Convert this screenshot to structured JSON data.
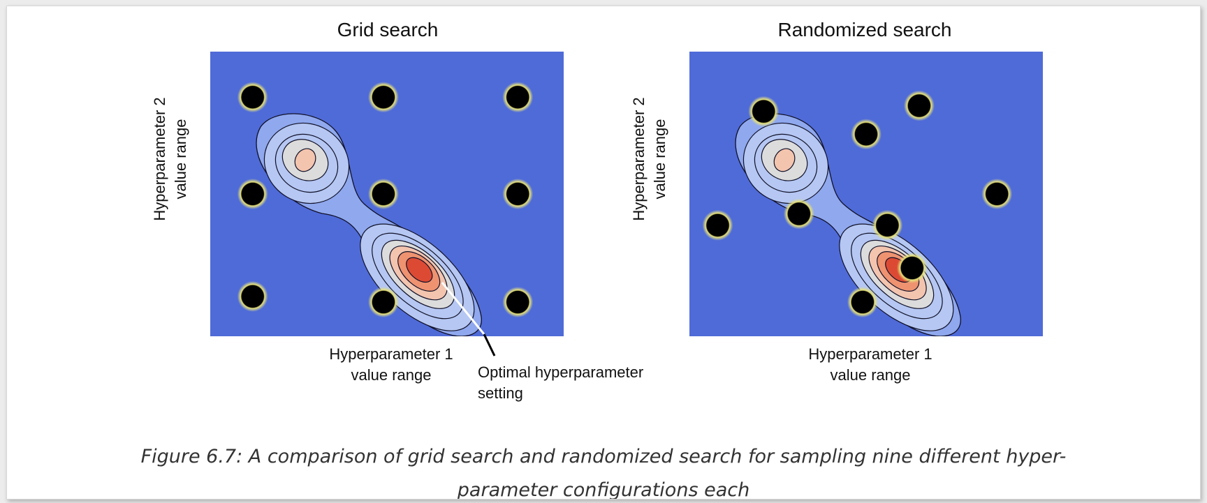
{
  "panels": {
    "grid": {
      "title": "Grid search",
      "xlabel_line1": "Hyperparameter 1",
      "xlabel_line2": "value range",
      "ylabel_line1": "Hyperparameter 2",
      "ylabel_line2": "value range",
      "samples": [
        [
          0.12,
          0.16
        ],
        [
          0.49,
          0.16
        ],
        [
          0.87,
          0.16
        ],
        [
          0.12,
          0.5
        ],
        [
          0.49,
          0.5
        ],
        [
          0.87,
          0.5
        ],
        [
          0.12,
          0.86
        ],
        [
          0.49,
          0.88
        ],
        [
          0.87,
          0.88
        ]
      ]
    },
    "random": {
      "title": "Randomized search",
      "xlabel_line1": "Hyperparameter 1",
      "xlabel_line2": "value range",
      "ylabel_line1": "Hyperparameter 2",
      "ylabel_line2": "value range",
      "samples": [
        [
          0.21,
          0.21
        ],
        [
          0.65,
          0.19
        ],
        [
          0.5,
          0.29
        ],
        [
          0.08,
          0.61
        ],
        [
          0.31,
          0.57
        ],
        [
          0.56,
          0.61
        ],
        [
          0.87,
          0.5
        ],
        [
          0.63,
          0.76
        ],
        [
          0.49,
          0.88
        ]
      ]
    }
  },
  "annotation": {
    "line1": "Optimal hyperparameter",
    "line2": "setting"
  },
  "caption": {
    "line1": "Figure 6.7: A comparison of grid search and randomized search for sampling nine different hyper-",
    "line2": "parameter configurations each"
  },
  "colors": {
    "background": "#4f6bd8",
    "level1": "#8fa8ee",
    "level2": "#b5c7f2",
    "level3": "#dcdcdc",
    "level4": "#f3c4ae",
    "level5": "#ee9270",
    "level6": "#dd4a34",
    "sample_fill": "#000000",
    "sample_ring": "#e6e17a"
  }
}
